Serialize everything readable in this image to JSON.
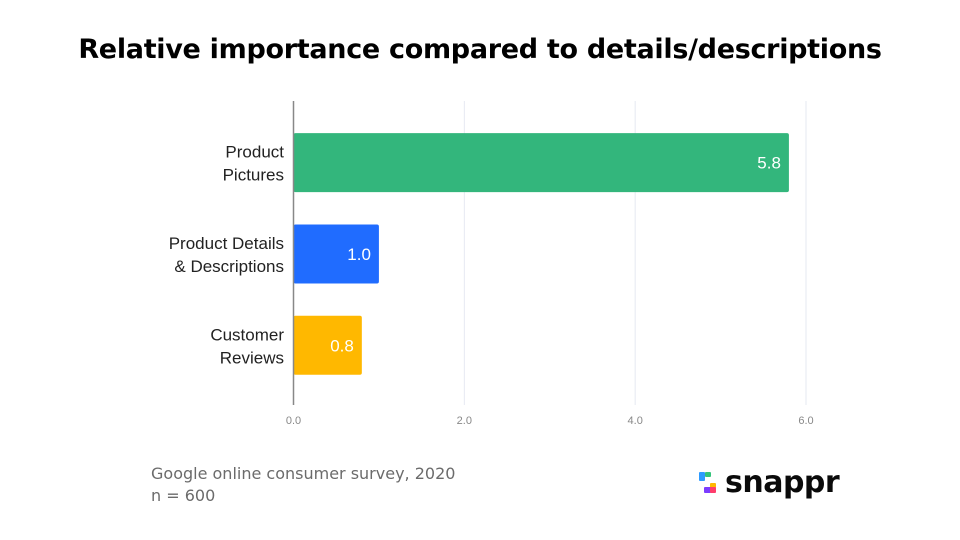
{
  "chart_data": {
    "type": "bar",
    "orientation": "horizontal",
    "title": "Relative importance compared to details/descriptions",
    "categories": [
      "Product Pictures",
      "Product Details & Descriptions",
      "Customer Reviews"
    ],
    "category_lines": [
      [
        "Product",
        "Pictures"
      ],
      [
        "Product Details",
        "& Descriptions"
      ],
      [
        "Customer",
        "Reviews"
      ]
    ],
    "values": [
      5.8,
      1.0,
      0.8
    ],
    "value_labels": [
      "5.8",
      "1.0",
      "0.8"
    ],
    "colors": [
      "#33b67c",
      "#206cff",
      "#ffb800"
    ],
    "xlabel": "",
    "ylabel": "",
    "xlim": [
      0,
      6.0
    ],
    "xticks": [
      0,
      2,
      4,
      6
    ],
    "xtick_labels": [
      "0.0",
      "2.0",
      "4.0",
      "6.0"
    ],
    "grid": true,
    "legend": "none"
  },
  "source": {
    "line1": "Google online consumer survey, 2020",
    "line2": "n = 600"
  },
  "logo": {
    "text": "snappr",
    "colors": [
      "#2e9bff",
      "#33c47a",
      "#ffb800",
      "#7b3cff",
      "#ff3d6b"
    ]
  }
}
